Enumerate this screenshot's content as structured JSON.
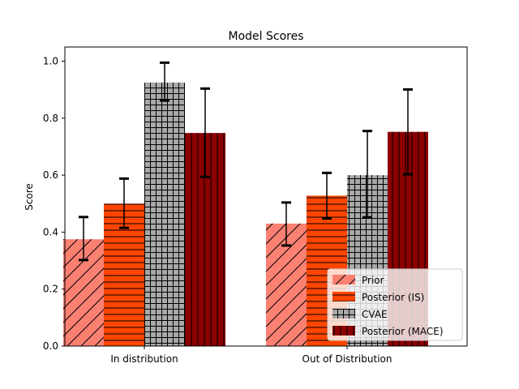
{
  "chart_data": {
    "type": "bar",
    "title": "Model Scores",
    "xlabel": "",
    "ylabel": "Score",
    "ylim": [
      0,
      1.05
    ],
    "yticks": [
      0.0,
      0.2,
      0.4,
      0.6,
      0.8,
      1.0
    ],
    "ytick_labels": [
      "0.0",
      "0.2",
      "0.4",
      "0.6",
      "0.8",
      "1.0"
    ],
    "categories": [
      "In distribution",
      "Out of Distribution"
    ],
    "grid": false,
    "legend_position": "bottom-right",
    "series": [
      {
        "name": "Prior",
        "values": [
          0.375,
          0.43
        ],
        "err_low": [
          0.302,
          0.353
        ],
        "err_high": [
          0.453,
          0.504
        ],
        "color": "#fa8072",
        "hatch": "diagonal"
      },
      {
        "name": "Posterior (IS)",
        "values": [
          0.5,
          0.528
        ],
        "err_low": [
          0.415,
          0.448
        ],
        "err_high": [
          0.588,
          0.608
        ],
        "color": "#ff4500",
        "hatch": "horizontal"
      },
      {
        "name": "CVAE",
        "values": [
          0.925,
          0.6
        ],
        "err_low": [
          0.862,
          0.452
        ],
        "err_high": [
          0.995,
          0.755
        ],
        "color": "#a9a9a9",
        "hatch": "grid"
      },
      {
        "name": "Posterior (MACE)",
        "values": [
          0.748,
          0.752
        ],
        "err_low": [
          0.594,
          0.603
        ],
        "err_high": [
          0.904,
          0.901
        ],
        "color": "#8b0000",
        "hatch": "vertical"
      }
    ]
  }
}
